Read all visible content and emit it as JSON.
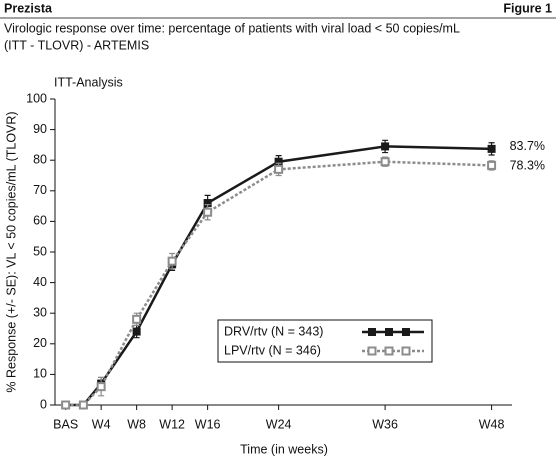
{
  "chart_data": {
    "type": "line",
    "header": "Prezista",
    "figure_label": "Figure 1",
    "title": "Virologic response over time: percentage of patients with viral load < 50 copies/mL",
    "subtitle": "(ITT - TLOVR) - ARTEMIS",
    "panel_label": "ITT-Analysis",
    "x_label": "Time (in weeks)",
    "y_label": "% Response (+/- SE): VL < 50 copies/mL (TLOVR)",
    "x": [
      0,
      2,
      4,
      8,
      12,
      16,
      24,
      36,
      48
    ],
    "series": [
      {
        "name": "DRV/rtv (N = 343)",
        "color": "#1a1a1a",
        "dashed": false,
        "filled": true,
        "values": [
          0,
          0,
          7,
          24,
          46,
          66,
          79.5,
          84.5,
          83.7
        ],
        "errors": [
          0,
          0,
          2,
          2,
          2,
          2.5,
          2,
          2,
          2
        ],
        "value_labels": [
          null,
          null,
          null,
          null,
          null,
          null,
          null,
          null,
          "83.7%"
        ]
      },
      {
        "name": "LPV/rtv (N = 346)",
        "color": "#8c8c8c",
        "dashed": true,
        "filled": false,
        "values": [
          0,
          0,
          6,
          28,
          47,
          63,
          77,
          79.5,
          78.3
        ],
        "errors": [
          0,
          0,
          3,
          2,
          2.5,
          2.5,
          2,
          1.5,
          1.5
        ],
        "value_labels": [
          null,
          null,
          null,
          null,
          null,
          null,
          null,
          null,
          "78.3%"
        ]
      }
    ],
    "xlim": [
      -1.2,
      50.3
    ],
    "xticks": [
      {
        "value": 0,
        "label": "BAS"
      },
      {
        "value": 4,
        "label": "W4"
      },
      {
        "value": 8,
        "label": "W8"
      },
      {
        "value": 12,
        "label": "W12"
      },
      {
        "value": 16,
        "label": "W16"
      },
      {
        "value": 24,
        "label": "W24"
      },
      {
        "value": 36,
        "label": "W36"
      },
      {
        "value": 48,
        "label": "W48"
      }
    ],
    "ylim": [
      0,
      100
    ],
    "yticks": [
      0,
      10,
      20,
      30,
      40,
      50,
      60,
      70,
      80,
      90,
      100
    ]
  }
}
